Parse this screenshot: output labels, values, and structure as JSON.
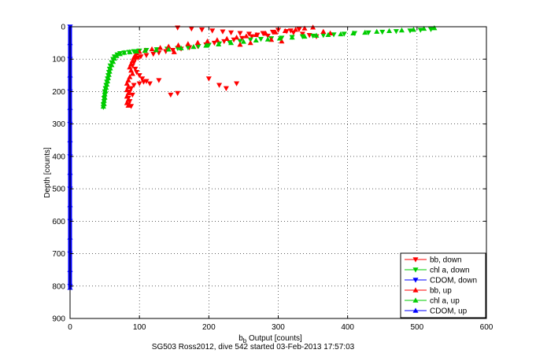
{
  "chart_data": {
    "type": "scatter",
    "title": "",
    "xlabel_main": "b",
    "xlabel_sub": "b",
    "xlabel_rest": " Output [counts]",
    "ylabel": "Depth [counts]",
    "caption": "SG503 Ross2012, dive 542 started 03-Feb-2013 17:57:03",
    "xlim": [
      0,
      600
    ],
    "ylim": [
      0,
      900
    ],
    "y_reversed": true,
    "grid": true,
    "x_ticks": [
      "0",
      "100",
      "200",
      "300",
      "400",
      "500",
      "600"
    ],
    "y_ticks": [
      "0",
      "100",
      "200",
      "300",
      "400",
      "500",
      "600",
      "700",
      "800",
      "900"
    ],
    "legend_position": "bottom-right",
    "series": [
      {
        "name": "bb, down",
        "color": "#ff0000",
        "marker": "triangle-down",
        "points": [
          [
            155,
            3
          ],
          [
            175,
            6
          ],
          [
            190,
            9
          ],
          [
            205,
            12
          ],
          [
            220,
            15
          ],
          [
            232,
            18
          ],
          [
            245,
            20
          ],
          [
            258,
            22
          ],
          [
            270,
            25
          ],
          [
            285,
            28
          ],
          [
            300,
            10
          ],
          [
            312,
            14
          ],
          [
            322,
            18
          ],
          [
            335,
            22
          ],
          [
            345,
            26
          ],
          [
            355,
            30
          ],
          [
            330,
            8
          ],
          [
            318,
            12
          ],
          [
            292,
            16
          ],
          [
            278,
            20
          ],
          [
            262,
            30
          ],
          [
            248,
            35
          ],
          [
            236,
            40
          ],
          [
            222,
            45
          ],
          [
            208,
            50
          ],
          [
            196,
            55
          ],
          [
            184,
            60
          ],
          [
            172,
            64
          ],
          [
            160,
            68
          ],
          [
            148,
            72
          ],
          [
            138,
            76
          ],
          [
            128,
            80
          ],
          [
            120,
            84
          ],
          [
            110,
            88
          ],
          [
            102,
            92
          ],
          [
            98,
            96
          ],
          [
            94,
            100
          ],
          [
            92,
            110
          ],
          [
            90,
            120
          ],
          [
            94,
            130
          ],
          [
            96,
            140
          ],
          [
            100,
            150
          ],
          [
            104,
            160
          ],
          [
            106,
            170
          ],
          [
            100,
            175
          ],
          [
            110,
            168
          ],
          [
            92,
            180
          ],
          [
            88,
            190
          ],
          [
            86,
            200
          ],
          [
            90,
            210
          ],
          [
            84,
            220
          ],
          [
            86,
            230
          ],
          [
            84,
            240
          ],
          [
            88,
            245
          ],
          [
            200,
            160
          ],
          [
            215,
            180
          ],
          [
            225,
            190
          ],
          [
            240,
            175
          ],
          [
            128,
            165
          ],
          [
            115,
            175
          ],
          [
            155,
            205
          ],
          [
            145,
            210
          ]
        ]
      },
      {
        "name": "chl a, down",
        "color": "#00cc00",
        "marker": "triangle-down",
        "points": [
          [
            520,
            8
          ],
          [
            505,
            10
          ],
          [
            490,
            12
          ],
          [
            470,
            14
          ],
          [
            450,
            16
          ],
          [
            430,
            18
          ],
          [
            410,
            20
          ],
          [
            395,
            22
          ],
          [
            380,
            24
          ],
          [
            365,
            26
          ],
          [
            350,
            28
          ],
          [
            335,
            30
          ],
          [
            320,
            32
          ],
          [
            305,
            34
          ],
          [
            290,
            36
          ],
          [
            275,
            38
          ],
          [
            260,
            40
          ],
          [
            245,
            44
          ],
          [
            230,
            48
          ],
          [
            215,
            52
          ],
          [
            200,
            56
          ],
          [
            185,
            60
          ],
          [
            170,
            64
          ],
          [
            155,
            66
          ],
          [
            140,
            68
          ],
          [
            125,
            70
          ],
          [
            110,
            72
          ],
          [
            100,
            74
          ],
          [
            92,
            76
          ],
          [
            85,
            78
          ],
          [
            78,
            80
          ],
          [
            72,
            82
          ],
          [
            68,
            86
          ],
          [
            64,
            92
          ],
          [
            62,
            100
          ],
          [
            60,
            110
          ],
          [
            58,
            120
          ],
          [
            57,
            130
          ],
          [
            56,
            140
          ],
          [
            55,
            150
          ],
          [
            54,
            160
          ],
          [
            53,
            170
          ],
          [
            52,
            180
          ],
          [
            51,
            190
          ],
          [
            50,
            200
          ],
          [
            50,
            210
          ],
          [
            49,
            220
          ],
          [
            49,
            230
          ],
          [
            48,
            240
          ],
          [
            48,
            248
          ]
        ]
      },
      {
        "name": "CDOM, down",
        "color": "#0000ff",
        "marker": "triangle-down",
        "points": [
          [
            0,
            0
          ],
          [
            0,
            100
          ],
          [
            0,
            200
          ],
          [
            0,
            300
          ],
          [
            0,
            400
          ],
          [
            0,
            500
          ],
          [
            0,
            600
          ],
          [
            0,
            700
          ],
          [
            0,
            800
          ]
        ]
      },
      {
        "name": "bb, up",
        "color": "#ff0000",
        "marker": "triangle-up",
        "points": [
          [
            350,
            2
          ],
          [
            338,
            5
          ],
          [
            325,
            9
          ],
          [
            310,
            13
          ],
          [
            296,
            17
          ],
          [
            282,
            21
          ],
          [
            268,
            25
          ],
          [
            254,
            29
          ],
          [
            240,
            33
          ],
          [
            226,
            37
          ],
          [
            212,
            41
          ],
          [
            198,
            45
          ],
          [
            184,
            49
          ],
          [
            170,
            53
          ],
          [
            156,
            57
          ],
          [
            142,
            61
          ],
          [
            130,
            65
          ],
          [
            118,
            69
          ],
          [
            108,
            73
          ],
          [
            100,
            77
          ],
          [
            96,
            82
          ],
          [
            94,
            88
          ],
          [
            92,
            95
          ],
          [
            90,
            105
          ],
          [
            88,
            115
          ],
          [
            86,
            125
          ],
          [
            88,
            135
          ],
          [
            90,
            145
          ],
          [
            86,
            155
          ],
          [
            84,
            165
          ],
          [
            82,
            175
          ],
          [
            84,
            185
          ],
          [
            82,
            195
          ],
          [
            84,
            205
          ],
          [
            82,
            215
          ],
          [
            84,
            225
          ],
          [
            82,
            235
          ],
          [
            84,
            243
          ],
          [
            140,
            70
          ],
          [
            150,
            78
          ],
          [
            365,
            15
          ],
          [
            375,
            20
          ],
          [
            290,
            40
          ],
          [
            305,
            45
          ],
          [
            260,
            50
          ],
          [
            245,
            55
          ]
        ]
      },
      {
        "name": "chl a, up",
        "color": "#00cc00",
        "marker": "triangle-up",
        "points": [
          [
            525,
            4
          ],
          [
            510,
            6
          ],
          [
            495,
            9
          ],
          [
            478,
            11
          ],
          [
            460,
            13
          ],
          [
            442,
            15
          ],
          [
            425,
            18
          ],
          [
            408,
            20
          ],
          [
            390,
            23
          ],
          [
            372,
            25
          ],
          [
            355,
            27
          ],
          [
            338,
            30
          ],
          [
            320,
            33
          ],
          [
            302,
            36
          ],
          [
            285,
            39
          ],
          [
            268,
            42
          ],
          [
            250,
            46
          ],
          [
            232,
            50
          ],
          [
            214,
            54
          ],
          [
            196,
            58
          ],
          [
            178,
            62
          ],
          [
            160,
            66
          ],
          [
            142,
            70
          ],
          [
            124,
            72
          ],
          [
            108,
            74
          ],
          [
            96,
            76
          ],
          [
            86,
            78
          ],
          [
            78,
            80
          ],
          [
            72,
            84
          ],
          [
            67,
            90
          ],
          [
            64,
            98
          ],
          [
            62,
            108
          ],
          [
            60,
            118
          ],
          [
            58,
            128
          ],
          [
            57,
            138
          ],
          [
            56,
            148
          ],
          [
            55,
            158
          ],
          [
            54,
            168
          ],
          [
            53,
            178
          ],
          [
            52,
            188
          ],
          [
            51,
            198
          ],
          [
            50,
            208
          ],
          [
            50,
            218
          ],
          [
            49,
            228
          ],
          [
            49,
            238
          ],
          [
            48,
            246
          ]
        ]
      },
      {
        "name": "CDOM, up",
        "color": "#0000ff",
        "marker": "triangle-up",
        "points": [
          [
            0,
            50
          ],
          [
            0,
            150
          ],
          [
            0,
            250
          ],
          [
            0,
            350
          ],
          [
            0,
            450
          ],
          [
            0,
            550
          ],
          [
            0,
            650
          ],
          [
            0,
            750
          ],
          [
            0,
            805
          ]
        ]
      }
    ]
  }
}
